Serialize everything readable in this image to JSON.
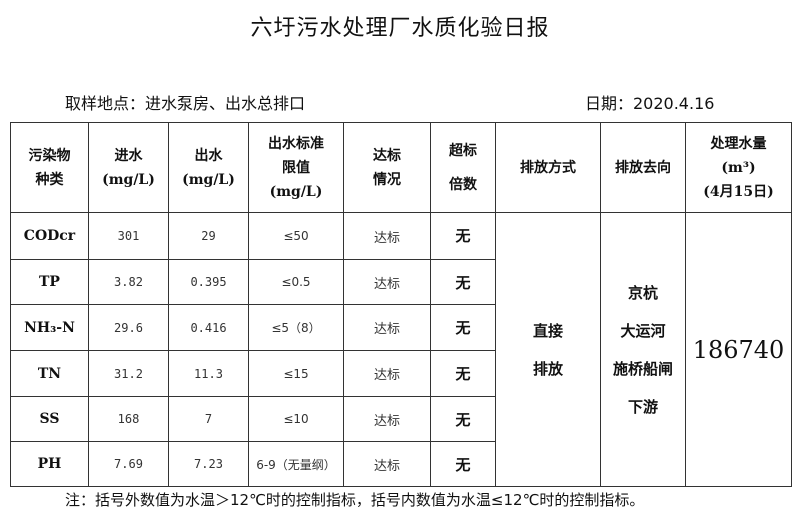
{
  "title": "六圩污水处理厂水质化验日报",
  "site": "取样地点：进水泵房、出水总排口",
  "date": "日期：2020.4.16",
  "headers": {
    "pollutant": [
      "污染物",
      "种类"
    ],
    "inflow": [
      "进水",
      "(mg/L)"
    ],
    "outflow": [
      "出水",
      "(mg/L)"
    ],
    "limit": [
      "出水标准",
      "限值",
      "(mg/L)"
    ],
    "status": [
      "达标",
      "情况"
    ],
    "exceed": [
      "超标",
      "倍数"
    ],
    "method": "排放方式",
    "dest": "排放去向",
    "volume": [
      "处理水量",
      "(m³)",
      "(4月15日)"
    ]
  },
  "rows": [
    {
      "name": "CODcr",
      "in": "301",
      "out": "29",
      "limit": "≤50",
      "status": "达标",
      "exceed": "无"
    },
    {
      "name": "TP",
      "in": "3.82",
      "out": "0.395",
      "limit": "≤0.5",
      "status": "达标",
      "exceed": "无"
    },
    {
      "name": "NH₃-N",
      "in": "29.6",
      "out": "0.416",
      "limit": "≤5（8）",
      "status": "达标",
      "exceed": "无"
    },
    {
      "name": "TN",
      "in": "31.2",
      "out": "11.3",
      "limit": "≤15",
      "status": "达标",
      "exceed": "无"
    },
    {
      "name": "SS",
      "in": "168",
      "out": "7",
      "limit": "≤10",
      "status": "达标",
      "exceed": "无"
    },
    {
      "name": "PH",
      "in": "7.69",
      "out": "7.23",
      "limit": "6-9（无量纲）",
      "status": "达标",
      "exceed": "无"
    }
  ],
  "method": [
    "直接",
    "排放"
  ],
  "dest": [
    "京杭",
    "大运河",
    "施桥船闸",
    "下游"
  ],
  "volume": "186740",
  "note": "注：括号外数值为水温＞12℃时的控制指标，括号内数值为水温≤12℃时的控制指标。"
}
